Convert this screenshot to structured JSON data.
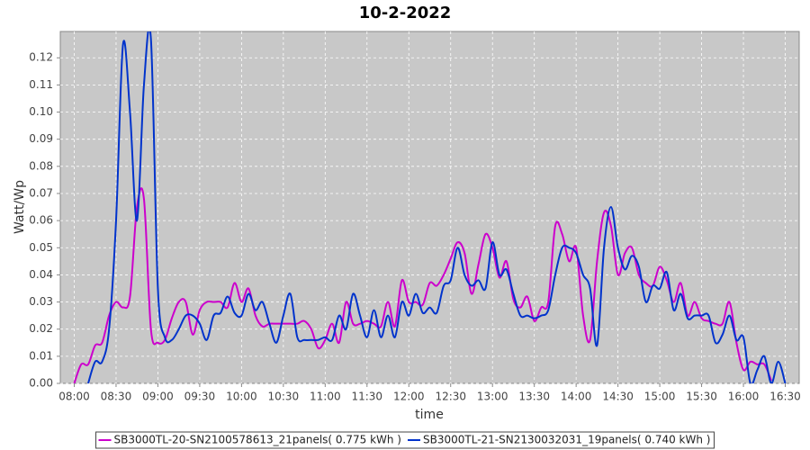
{
  "chart_data": {
    "type": "line",
    "title": "10-2-2022",
    "x_label": "time",
    "y_label": "Watt/Wp",
    "x": [
      480,
      485,
      490,
      495,
      500,
      505,
      510,
      515,
      520,
      525,
      530,
      535,
      540,
      545,
      550,
      555,
      560,
      565,
      570,
      575,
      580,
      585,
      590,
      595,
      600,
      605,
      610,
      615,
      620,
      625,
      630,
      635,
      640,
      645,
      650,
      655,
      660,
      665,
      670,
      675,
      680,
      685,
      690,
      695,
      700,
      705,
      710,
      715,
      720,
      725,
      730,
      735,
      740,
      745,
      750,
      755,
      760,
      765,
      770,
      775,
      780,
      785,
      790,
      795,
      800,
      805,
      810,
      815,
      820,
      825,
      830,
      835,
      840,
      845,
      850,
      855,
      860,
      865,
      870,
      875,
      880,
      885,
      890,
      895,
      900,
      905,
      910,
      915,
      920,
      925,
      930,
      935,
      940,
      945,
      950,
      955,
      960,
      965,
      970,
      975,
      980,
      985,
      990
    ],
    "series": [
      {
        "name": "SB3000TL-20-SN2100578613_21panels( 0.775 kWh )",
        "color": "#cc00cc",
        "values": [
          0,
          0.007,
          0.007,
          0.014,
          0.015,
          0.025,
          0.03,
          0.028,
          0.032,
          0.065,
          0.068,
          0.02,
          0.015,
          0.016,
          0.024,
          0.03,
          0.03,
          0.018,
          0.027,
          0.03,
          0.03,
          0.03,
          0.028,
          0.037,
          0.03,
          0.035,
          0.025,
          0.021,
          0.022,
          0.022,
          0.022,
          0.022,
          0.022,
          0.023,
          0.02,
          0.013,
          0.016,
          0.022,
          0.015,
          0.03,
          0.022,
          0.022,
          0.023,
          0.022,
          0.021,
          0.03,
          0.021,
          0.038,
          0.03,
          0.03,
          0.029,
          0.037,
          0.036,
          0.04,
          0.046,
          0.052,
          0.048,
          0.033,
          0.044,
          0.055,
          0.05,
          0.039,
          0.045,
          0.031,
          0.028,
          0.032,
          0.023,
          0.028,
          0.03,
          0.058,
          0.055,
          0.045,
          0.05,
          0.025,
          0.016,
          0.045,
          0.063,
          0.058,
          0.04,
          0.048,
          0.05,
          0.04,
          0.037,
          0.036,
          0.043,
          0.038,
          0.03,
          0.037,
          0.025,
          0.03,
          0.024,
          0.023,
          0.022,
          0.022,
          0.03,
          0.015,
          0.005,
          0.008,
          0.007,
          0.007,
          0.001,
          null,
          null
        ]
      },
      {
        "name": "SB3000TL-21-SN2130032031_19panels( 0.740 kWh )",
        "color": "#0033cc",
        "values": [
          null,
          null,
          0,
          0.008,
          0.008,
          0.02,
          0.06,
          0.125,
          0.1,
          0.06,
          0.11,
          0.127,
          0.035,
          0.017,
          0.016,
          0.02,
          0.025,
          0.025,
          0.022,
          0.016,
          0.025,
          0.026,
          0.032,
          0.026,
          0.025,
          0.033,
          0.027,
          0.03,
          0.022,
          0.015,
          0.025,
          0.033,
          0.017,
          0.016,
          0.016,
          0.016,
          0.017,
          0.016,
          0.025,
          0.02,
          0.033,
          0.025,
          0.017,
          0.027,
          0.017,
          0.025,
          0.017,
          0.03,
          0.025,
          0.033,
          0.026,
          0.028,
          0.026,
          0.036,
          0.038,
          0.05,
          0.04,
          0.036,
          0.038,
          0.035,
          0.052,
          0.04,
          0.042,
          0.033,
          0.025,
          0.025,
          0.024,
          0.025,
          0.027,
          0.04,
          0.05,
          0.05,
          0.048,
          0.04,
          0.035,
          0.014,
          0.05,
          0.065,
          0.05,
          0.042,
          0.047,
          0.043,
          0.03,
          0.036,
          0.035,
          0.041,
          0.027,
          0.033,
          0.024,
          0.025,
          0.025,
          0.025,
          0.015,
          0.018,
          0.025,
          0.016,
          0.017,
          0,
          0.005,
          0.01,
          0,
          0.008,
          0
        ]
      }
    ],
    "xlim": [
      470,
      1000
    ],
    "xticks": [
      {
        "value": 480,
        "label": "08:00"
      },
      {
        "value": 510,
        "label": "08:30"
      },
      {
        "value": 540,
        "label": "09:00"
      },
      {
        "value": 570,
        "label": "09:30"
      },
      {
        "value": 600,
        "label": "10:00"
      },
      {
        "value": 630,
        "label": "10:30"
      },
      {
        "value": 660,
        "label": "11:00"
      },
      {
        "value": 690,
        "label": "11:30"
      },
      {
        "value": 720,
        "label": "12:00"
      },
      {
        "value": 750,
        "label": "12:30"
      },
      {
        "value": 780,
        "label": "13:00"
      },
      {
        "value": 810,
        "label": "13:30"
      },
      {
        "value": 840,
        "label": "14:00"
      },
      {
        "value": 870,
        "label": "14:30"
      },
      {
        "value": 900,
        "label": "15:00"
      },
      {
        "value": 930,
        "label": "15:30"
      },
      {
        "value": 960,
        "label": "16:00"
      },
      {
        "value": 990,
        "label": "16:30"
      }
    ],
    "ylim": [
      0,
      0.1297
    ],
    "yticks": [
      {
        "value": 0,
        "label": "0.00"
      },
      0.01,
      0.02,
      0.03,
      0.04,
      0.05,
      0.06,
      0.07,
      0.08,
      0.09,
      {
        "value": 0.1,
        "label": "0.10"
      },
      0.11,
      0.12
    ],
    "grid": true
  }
}
